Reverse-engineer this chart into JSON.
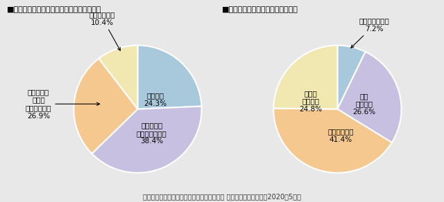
{
  "title1": "■コロナ禍収束後もテレワークを行いたいか",
  "title2": "■自宅での勤務で効率が上がったか",
  "chart1": {
    "values": [
      24.3,
      38.4,
      26.9,
      10.4
    ],
    "colors": [
      "#a8c8dc",
      "#c8c0e0",
      "#f5c890",
      "#f0e8b0"
    ],
    "startangle": 90
  },
  "chart2": {
    "values": [
      7.2,
      26.6,
      41.4,
      24.8
    ],
    "colors": [
      "#a8c8dc",
      "#c8c0e0",
      "#f5c890",
      "#f0e8b0"
    ],
    "startangle": 90
  },
  "footnote": "出典：公益財団法人日本生産性本部「第１回 働く人の意識調査」（2020年5月）",
  "bg_color": "#e8e8e8"
}
